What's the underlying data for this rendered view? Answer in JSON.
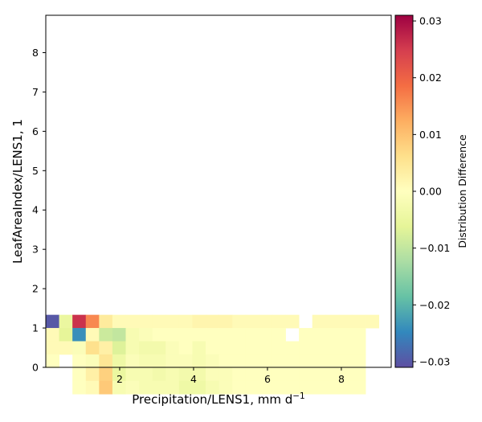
{
  "chart_data": {
    "type": "heatmap",
    "xlabel": "Precipitation/LENS1,  mm d",
    "xlabel_superscript": "−1",
    "ylabel": "LeafAreaIndex/LENS1,  1",
    "colorbar_label": "Distribution Difference",
    "colormap": "Spectral_r",
    "colors": [
      "#5e4fa2",
      "#3288bd",
      "#66c2a5",
      "#abdda4",
      "#e6f598",
      "#ffffbf",
      "#fee08b",
      "#fdae61",
      "#f46d43",
      "#d53e4f",
      "#9e0142"
    ],
    "xlim": [
      0,
      9.35
    ],
    "ylim": [
      0,
      8.95
    ],
    "clim": [
      -0.031,
      0.031
    ],
    "xticks": [
      "2",
      "4",
      "6",
      "8"
    ],
    "yticks": [
      "0",
      "1",
      "2",
      "3",
      "4",
      "5",
      "6",
      "7",
      "8"
    ],
    "cbticks": [
      "−0.03",
      "−0.02",
      "−0.01",
      "0.00",
      "0.01",
      "0.02",
      "0.03"
    ],
    "grid": false,
    "bin_width": 0.3606,
    "bin_height": 0.3355,
    "cells": [
      [
        0.0,
        1.0,
        -0.03
      ],
      [
        0.3606,
        1.0,
        -0.005
      ],
      [
        0.7213,
        1.0,
        0.026
      ],
      [
        1.0819,
        1.0,
        0.016
      ],
      [
        1.4425,
        1.0,
        0.004
      ],
      [
        1.8031,
        1.0,
        0.001
      ],
      [
        2.1638,
        1.0,
        0.001
      ],
      [
        2.5244,
        1.0,
        0.001
      ],
      [
        2.885,
        1.0,
        0.001
      ],
      [
        3.2456,
        1.0,
        0.001
      ],
      [
        3.6063,
        1.0,
        0.001
      ],
      [
        3.9669,
        1.0,
        0.002
      ],
      [
        4.3275,
        1.0,
        0.002
      ],
      [
        4.6881,
        1.0,
        0.002
      ],
      [
        5.0488,
        1.0,
        0.001
      ],
      [
        5.4094,
        1.0,
        0.001
      ],
      [
        5.77,
        1.0,
        0.001
      ],
      [
        6.1306,
        1.0,
        0.001
      ],
      [
        6.4913,
        1.0,
        0.001
      ],
      [
        7.2125,
        1.0,
        0.001
      ],
      [
        7.5731,
        1.0,
        0.001
      ],
      [
        7.9338,
        1.0,
        0.001
      ],
      [
        8.2944,
        1.0,
        0.001
      ],
      [
        8.655,
        1.0,
        0.001
      ],
      [
        0.0,
        0.6645,
        0.001
      ],
      [
        0.3606,
        0.6645,
        -0.006
      ],
      [
        0.7213,
        0.6645,
        -0.024
      ],
      [
        1.0819,
        0.6645,
        0.001
      ],
      [
        1.4425,
        0.6645,
        -0.009
      ],
      [
        1.8031,
        0.6645,
        -0.01
      ],
      [
        2.1638,
        0.6645,
        -0.002
      ],
      [
        2.5244,
        0.6645,
        -0.001
      ],
      [
        2.885,
        0.6645,
        0.0
      ],
      [
        3.2456,
        0.6645,
        0.0
      ],
      [
        3.6063,
        0.6645,
        0.0
      ],
      [
        3.9669,
        0.6645,
        0.0
      ],
      [
        4.3275,
        0.6645,
        0.0
      ],
      [
        4.6881,
        0.6645,
        0.0
      ],
      [
        5.0488,
        0.6645,
        0.0
      ],
      [
        5.4094,
        0.6645,
        0.0
      ],
      [
        5.77,
        0.6645,
        0.0
      ],
      [
        6.1306,
        0.6645,
        0.0
      ],
      [
        6.8519,
        0.6645,
        0.0
      ],
      [
        7.2125,
        0.6645,
        0.0
      ],
      [
        7.5731,
        0.6645,
        0.0
      ],
      [
        7.9338,
        0.6645,
        0.0
      ],
      [
        8.2944,
        0.6645,
        0.0
      ],
      [
        0.0,
        0.329,
        0.001
      ],
      [
        0.3606,
        0.329,
        0.001
      ],
      [
        0.7213,
        0.329,
        -0.001
      ],
      [
        1.0819,
        0.329,
        0.006
      ],
      [
        1.4425,
        0.329,
        0.003
      ],
      [
        1.8031,
        0.329,
        -0.007
      ],
      [
        2.1638,
        0.329,
        -0.002
      ],
      [
        2.5244,
        0.329,
        -0.003
      ],
      [
        2.885,
        0.329,
        -0.003
      ],
      [
        3.2456,
        0.329,
        -0.001
      ],
      [
        3.6063,
        0.329,
        0.0
      ],
      [
        3.9669,
        0.329,
        -0.002
      ],
      [
        4.3275,
        0.329,
        0.0
      ],
      [
        4.6881,
        0.329,
        0.0
      ],
      [
        5.0488,
        0.329,
        0.0
      ],
      [
        5.4094,
        0.329,
        0.0
      ],
      [
        5.77,
        0.329,
        0.0
      ],
      [
        6.1306,
        0.329,
        0.0
      ],
      [
        6.4913,
        0.329,
        0.0
      ],
      [
        6.8519,
        0.329,
        0.0
      ],
      [
        7.2125,
        0.329,
        0.0
      ],
      [
        7.5731,
        0.329,
        0.0
      ],
      [
        7.9338,
        0.329,
        0.0
      ],
      [
        8.2944,
        0.329,
        0.0
      ],
      [
        0.0,
        -0.0065,
        0.0
      ],
      [
        0.7213,
        -0.0065,
        0.0
      ],
      [
        1.0819,
        -0.0065,
        -0.001
      ],
      [
        1.4425,
        -0.0065,
        0.005
      ],
      [
        1.8031,
        -0.0065,
        -0.004
      ],
      [
        2.1638,
        -0.0065,
        -0.001
      ],
      [
        2.5244,
        -0.0065,
        -0.002
      ],
      [
        2.885,
        -0.0065,
        -0.002
      ],
      [
        3.2456,
        -0.0065,
        -0.001
      ],
      [
        3.6063,
        -0.0065,
        -0.001
      ],
      [
        3.9669,
        -0.0065,
        -0.002
      ],
      [
        4.3275,
        -0.0065,
        -0.001
      ],
      [
        4.6881,
        -0.0065,
        0.0
      ],
      [
        5.0488,
        -0.0065,
        0.0
      ],
      [
        5.4094,
        -0.0065,
        0.0
      ],
      [
        5.77,
        -0.0065,
        0.0
      ],
      [
        6.1306,
        -0.0065,
        0.0
      ],
      [
        6.4913,
        -0.0065,
        0.0
      ],
      [
        6.8519,
        -0.0065,
        0.0
      ],
      [
        7.2125,
        -0.0065,
        0.0
      ],
      [
        7.5731,
        -0.0065,
        0.0
      ],
      [
        7.9338,
        -0.0065,
        0.0
      ],
      [
        8.2944,
        -0.0065,
        0.0
      ],
      [
        0.7213,
        -0.342,
        0.0
      ],
      [
        1.0819,
        -0.342,
        0.003
      ],
      [
        1.4425,
        -0.342,
        0.008
      ],
      [
        1.8031,
        -0.342,
        -0.005
      ],
      [
        2.1638,
        -0.342,
        -0.002
      ],
      [
        2.5244,
        -0.342,
        -0.002
      ],
      [
        2.885,
        -0.342,
        -0.003
      ],
      [
        3.2456,
        -0.342,
        -0.002
      ],
      [
        3.6063,
        -0.342,
        -0.003
      ],
      [
        3.9669,
        -0.342,
        -0.003
      ],
      [
        4.3275,
        -0.342,
        -0.001
      ],
      [
        4.6881,
        -0.342,
        -0.001
      ],
      [
        5.0488,
        -0.342,
        0.0
      ],
      [
        5.4094,
        -0.342,
        0.0
      ],
      [
        5.77,
        -0.342,
        0.0
      ],
      [
        6.1306,
        -0.342,
        0.0
      ],
      [
        6.4913,
        -0.342,
        0.0
      ],
      [
        6.8519,
        -0.342,
        0.0
      ],
      [
        7.2125,
        -0.342,
        0.0
      ],
      [
        7.5731,
        -0.342,
        0.0
      ],
      [
        7.9338,
        -0.342,
        0.0
      ],
      [
        8.2944,
        -0.342,
        0.0
      ],
      [
        0.7213,
        -0.6775,
        0.0
      ],
      [
        1.0819,
        -0.6775,
        0.001
      ],
      [
        1.4425,
        -0.6775,
        0.009
      ],
      [
        1.8031,
        -0.6775,
        -0.002
      ],
      [
        2.1638,
        -0.6775,
        -0.001
      ],
      [
        2.5244,
        -0.6775,
        -0.002
      ],
      [
        2.885,
        -0.6775,
        -0.002
      ],
      [
        3.2456,
        -0.6775,
        -0.002
      ],
      [
        3.6063,
        -0.6775,
        -0.004
      ],
      [
        3.9669,
        -0.6775,
        -0.004
      ],
      [
        4.3275,
        -0.6775,
        -0.002
      ],
      [
        4.6881,
        -0.6775,
        -0.001
      ],
      [
        5.0488,
        -0.6775,
        0.0
      ],
      [
        5.4094,
        -0.6775,
        0.0
      ],
      [
        5.77,
        -0.6775,
        0.0
      ],
      [
        6.1306,
        -0.6775,
        0.0
      ],
      [
        6.4913,
        -0.6775,
        0.0
      ],
      [
        6.8519,
        -0.6775,
        0.0
      ],
      [
        7.2125,
        -0.6775,
        0.0
      ],
      [
        7.5731,
        -0.6775,
        0.0
      ],
      [
        7.9338,
        -0.6775,
        0.0
      ],
      [
        8.2944,
        -0.6775,
        0.0
      ]
    ]
  }
}
